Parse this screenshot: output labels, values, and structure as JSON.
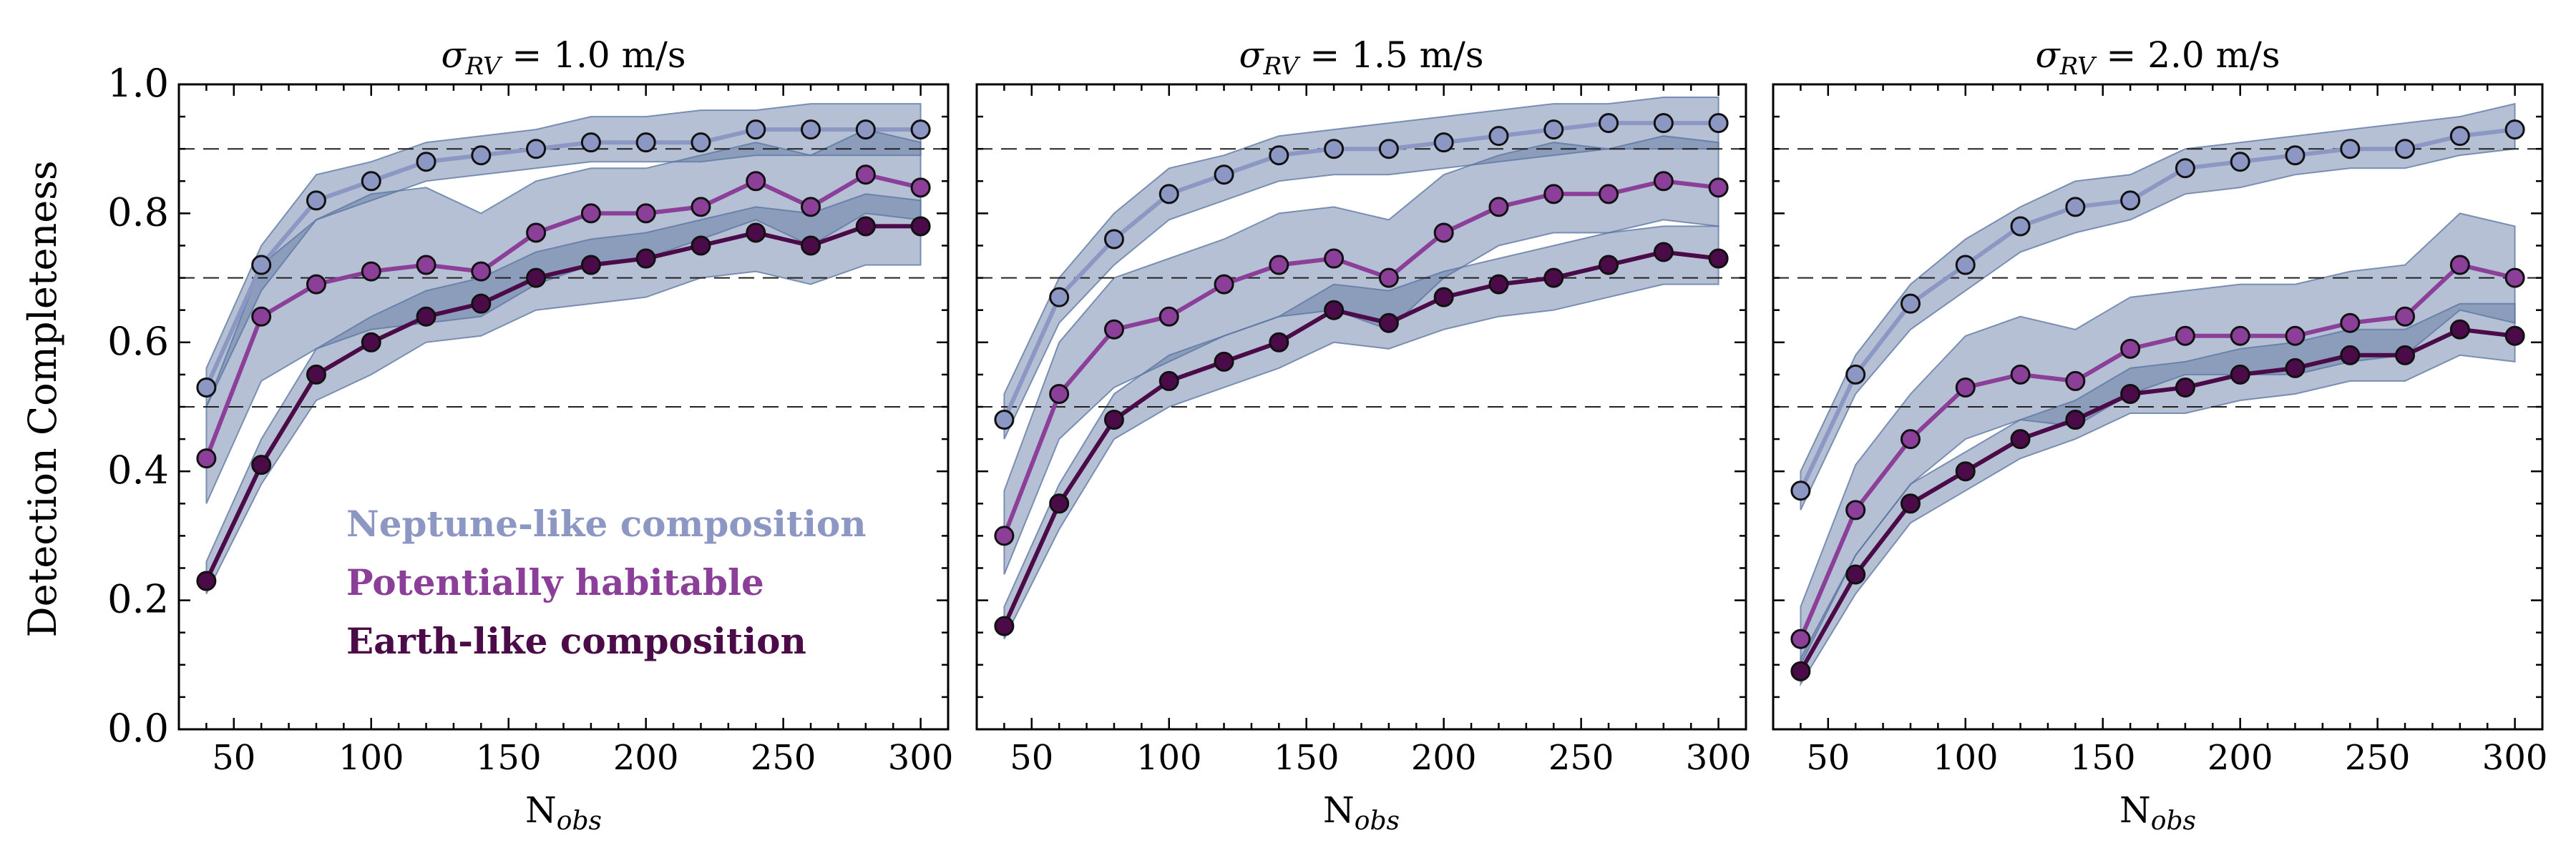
{
  "figure": {
    "ylabel": "Detection Completeness",
    "legend": [
      {
        "label": "Neptune-like composition",
        "color": "#8d97c4"
      },
      {
        "label": "Potentially habitable",
        "color": "#8b3f98"
      },
      {
        "label": "Earth-like composition",
        "color": "#4b0a48"
      }
    ],
    "band_color": "#5a74a0",
    "reference_lines": [
      0.5,
      0.7,
      0.9
    ]
  },
  "chart_data": [
    {
      "type": "line",
      "title": "σ_RV = 1.0 m/s",
      "xlabel": "N_obs",
      "ylabel": "Detection Completeness",
      "xlim": [
        30,
        310
      ],
      "ylim": [
        0,
        1.0
      ],
      "xticks": [
        50,
        100,
        150,
        200,
        250,
        300
      ],
      "yticks": [
        0.0,
        0.2,
        0.4,
        0.6,
        0.8,
        1.0
      ],
      "x": [
        40,
        60,
        80,
        100,
        120,
        140,
        160,
        180,
        200,
        220,
        240,
        260,
        280,
        300
      ],
      "series": [
        {
          "name": "Neptune-like composition",
          "color": "#8d97c4",
          "values": [
            0.53,
            0.72,
            0.82,
            0.85,
            0.88,
            0.89,
            0.9,
            0.91,
            0.91,
            0.91,
            0.93,
            0.93,
            0.93,
            0.93
          ],
          "lower": [
            0.5,
            0.68,
            0.79,
            0.82,
            0.85,
            0.86,
            0.87,
            0.88,
            0.88,
            0.88,
            0.89,
            0.89,
            0.89,
            0.89
          ],
          "upper": [
            0.56,
            0.75,
            0.86,
            0.88,
            0.91,
            0.92,
            0.93,
            0.95,
            0.95,
            0.96,
            0.96,
            0.97,
            0.97,
            0.97
          ]
        },
        {
          "name": "Potentially habitable",
          "color": "#8b3f98",
          "values": [
            0.42,
            0.64,
            0.69,
            0.71,
            0.72,
            0.71,
            0.77,
            0.8,
            0.8,
            0.81,
            0.85,
            0.81,
            0.86,
            0.84
          ],
          "lower": [
            0.35,
            0.54,
            0.59,
            0.62,
            0.63,
            0.64,
            0.69,
            0.72,
            0.73,
            0.76,
            0.79,
            0.75,
            0.8,
            0.79
          ],
          "upper": [
            0.5,
            0.72,
            0.79,
            0.83,
            0.84,
            0.8,
            0.85,
            0.87,
            0.87,
            0.89,
            0.91,
            0.89,
            0.93,
            0.91
          ]
        },
        {
          "name": "Earth-like composition",
          "color": "#4b0a48",
          "values": [
            0.23,
            0.41,
            0.55,
            0.6,
            0.64,
            0.66,
            0.7,
            0.72,
            0.73,
            0.75,
            0.77,
            0.75,
            0.78,
            0.78
          ],
          "lower": [
            0.21,
            0.38,
            0.51,
            0.55,
            0.6,
            0.61,
            0.65,
            0.66,
            0.67,
            0.7,
            0.71,
            0.69,
            0.72,
            0.72
          ],
          "upper": [
            0.26,
            0.45,
            0.59,
            0.64,
            0.68,
            0.7,
            0.74,
            0.76,
            0.77,
            0.79,
            0.81,
            0.8,
            0.83,
            0.82
          ]
        }
      ]
    },
    {
      "type": "line",
      "title": "σ_RV = 1.5 m/s",
      "xlabel": "N_obs",
      "ylabel": "",
      "xlim": [
        30,
        310
      ],
      "ylim": [
        0,
        1.0
      ],
      "xticks": [
        50,
        100,
        150,
        200,
        250,
        300
      ],
      "yticks": [
        0.0,
        0.2,
        0.4,
        0.6,
        0.8,
        1.0
      ],
      "x": [
        40,
        60,
        80,
        100,
        120,
        140,
        160,
        180,
        200,
        220,
        240,
        260,
        280,
        300
      ],
      "series": [
        {
          "name": "Neptune-like composition",
          "color": "#8d97c4",
          "values": [
            0.48,
            0.67,
            0.76,
            0.83,
            0.86,
            0.89,
            0.9,
            0.9,
            0.91,
            0.92,
            0.93,
            0.94,
            0.94,
            0.94
          ],
          "lower": [
            0.45,
            0.63,
            0.72,
            0.79,
            0.82,
            0.85,
            0.86,
            0.86,
            0.87,
            0.88,
            0.89,
            0.9,
            0.9,
            0.9
          ],
          "upper": [
            0.52,
            0.7,
            0.8,
            0.87,
            0.89,
            0.92,
            0.93,
            0.94,
            0.95,
            0.96,
            0.97,
            0.97,
            0.98,
            0.98
          ]
        },
        {
          "name": "Potentially habitable",
          "color": "#8b3f98",
          "values": [
            0.3,
            0.52,
            0.62,
            0.64,
            0.69,
            0.72,
            0.73,
            0.7,
            0.77,
            0.81,
            0.83,
            0.83,
            0.85,
            0.84
          ],
          "lower": [
            0.24,
            0.45,
            0.53,
            0.57,
            0.61,
            0.64,
            0.65,
            0.62,
            0.7,
            0.75,
            0.77,
            0.77,
            0.79,
            0.78
          ],
          "upper": [
            0.37,
            0.6,
            0.7,
            0.73,
            0.76,
            0.8,
            0.81,
            0.79,
            0.86,
            0.89,
            0.91,
            0.9,
            0.92,
            0.91
          ]
        },
        {
          "name": "Earth-like composition",
          "color": "#4b0a48",
          "values": [
            0.16,
            0.35,
            0.48,
            0.54,
            0.57,
            0.6,
            0.65,
            0.63,
            0.67,
            0.69,
            0.7,
            0.72,
            0.74,
            0.73
          ],
          "lower": [
            0.14,
            0.31,
            0.45,
            0.5,
            0.53,
            0.56,
            0.6,
            0.59,
            0.62,
            0.64,
            0.65,
            0.67,
            0.69,
            0.69
          ],
          "upper": [
            0.19,
            0.38,
            0.52,
            0.58,
            0.61,
            0.64,
            0.69,
            0.68,
            0.71,
            0.73,
            0.75,
            0.77,
            0.78,
            0.78
          ]
        }
      ]
    },
    {
      "type": "line",
      "title": "σ_RV = 2.0 m/s",
      "xlabel": "N_obs",
      "ylabel": "",
      "xlim": [
        30,
        310
      ],
      "ylim": [
        0,
        1.0
      ],
      "xticks": [
        50,
        100,
        150,
        200,
        250,
        300
      ],
      "yticks": [
        0.0,
        0.2,
        0.4,
        0.6,
        0.8,
        1.0
      ],
      "x": [
        40,
        60,
        80,
        100,
        120,
        140,
        160,
        180,
        200,
        220,
        240,
        260,
        280,
        300
      ],
      "series": [
        {
          "name": "Neptune-like composition",
          "color": "#8d97c4",
          "values": [
            0.37,
            0.55,
            0.66,
            0.72,
            0.78,
            0.81,
            0.82,
            0.87,
            0.88,
            0.89,
            0.9,
            0.9,
            0.92,
            0.93
          ],
          "lower": [
            0.34,
            0.52,
            0.62,
            0.68,
            0.74,
            0.77,
            0.79,
            0.83,
            0.84,
            0.86,
            0.87,
            0.87,
            0.89,
            0.9
          ],
          "upper": [
            0.4,
            0.58,
            0.69,
            0.76,
            0.81,
            0.85,
            0.86,
            0.9,
            0.91,
            0.92,
            0.93,
            0.94,
            0.95,
            0.97
          ]
        },
        {
          "name": "Potentially habitable",
          "color": "#8b3f98",
          "values": [
            0.14,
            0.34,
            0.45,
            0.53,
            0.55,
            0.54,
            0.59,
            0.61,
            0.61,
            0.61,
            0.63,
            0.64,
            0.72,
            0.7
          ],
          "lower": [
            0.1,
            0.27,
            0.38,
            0.45,
            0.48,
            0.47,
            0.52,
            0.55,
            0.55,
            0.55,
            0.57,
            0.58,
            0.65,
            0.63
          ],
          "upper": [
            0.19,
            0.41,
            0.52,
            0.61,
            0.64,
            0.62,
            0.67,
            0.68,
            0.69,
            0.69,
            0.71,
            0.72,
            0.8,
            0.78
          ]
        },
        {
          "name": "Earth-like composition",
          "color": "#4b0a48",
          "values": [
            0.09,
            0.24,
            0.35,
            0.4,
            0.45,
            0.48,
            0.52,
            0.53,
            0.55,
            0.56,
            0.58,
            0.58,
            0.62,
            0.61
          ],
          "lower": [
            0.07,
            0.21,
            0.32,
            0.37,
            0.42,
            0.45,
            0.49,
            0.49,
            0.51,
            0.52,
            0.54,
            0.54,
            0.58,
            0.57
          ],
          "upper": [
            0.11,
            0.27,
            0.38,
            0.43,
            0.48,
            0.51,
            0.56,
            0.57,
            0.59,
            0.6,
            0.62,
            0.62,
            0.66,
            0.66
          ]
        }
      ]
    }
  ]
}
